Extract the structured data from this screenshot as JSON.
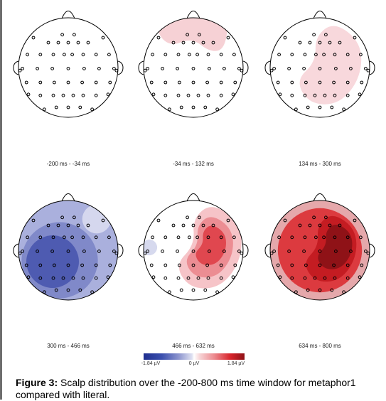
{
  "panels": [
    {
      "label": "-200 ms - -34 ms"
    },
    {
      "label": "-34 ms - 132 ms"
    },
    {
      "label": "134 ms - 300 ms"
    },
    {
      "label": "300 ms - 466 ms"
    },
    {
      "label": "466 ms - 632 ms"
    },
    {
      "label": "634 ms - 800 ms"
    }
  ],
  "colorbar": {
    "min_label": "-1.84 µV",
    "mid_label": "0 µV",
    "max_label": "1.84 µV",
    "colors": [
      "#1f2f8f",
      "#ffffff",
      "#8e1116"
    ]
  },
  "caption": {
    "label": "Figure 3:",
    "text": " Scalp distribution over the -200-800 ms time window for metaphor1 compared with literal."
  }
}
